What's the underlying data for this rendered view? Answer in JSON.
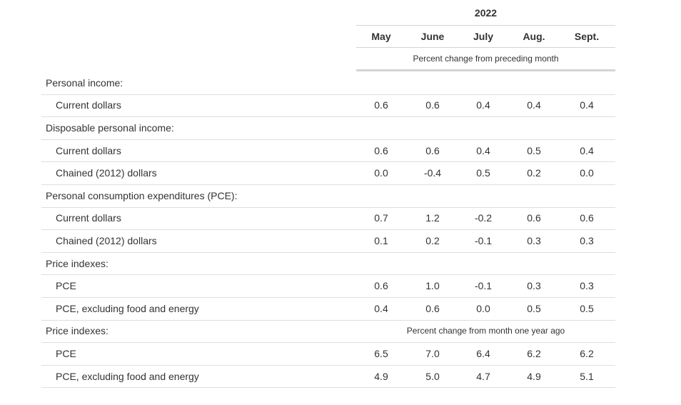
{
  "table": {
    "year": "2022",
    "months": [
      "May",
      "June",
      "July",
      "Aug.",
      "Sept."
    ],
    "subhead_monthly": "Percent change from preceding month",
    "rows": [
      {
        "type": "group",
        "label": "Personal income:"
      },
      {
        "type": "data",
        "label": "Current dollars",
        "values": [
          "0.6",
          "0.6",
          "0.4",
          "0.4",
          "0.4"
        ]
      },
      {
        "type": "group",
        "label": "Disposable personal income:"
      },
      {
        "type": "data",
        "label": "Current dollars",
        "values": [
          "0.6",
          "0.6",
          "0.4",
          "0.5",
          "0.4"
        ]
      },
      {
        "type": "data",
        "label": "Chained (2012) dollars",
        "values": [
          "0.0",
          "-0.4",
          "0.5",
          "0.2",
          "0.0"
        ]
      },
      {
        "type": "group",
        "label": "Personal consumption expenditures (PCE):"
      },
      {
        "type": "data",
        "label": "Current dollars",
        "values": [
          "0.7",
          "1.2",
          "-0.2",
          "0.6",
          "0.6"
        ]
      },
      {
        "type": "data",
        "label": "Chained (2012) dollars",
        "values": [
          "0.1",
          "0.2",
          "-0.1",
          "0.3",
          "0.3"
        ]
      },
      {
        "type": "group",
        "label": "Price indexes:"
      },
      {
        "type": "data",
        "label": "PCE",
        "values": [
          "0.6",
          "1.0",
          "-0.1",
          "0.3",
          "0.3"
        ]
      },
      {
        "type": "data",
        "label": "PCE, excluding food and energy",
        "values": [
          "0.4",
          "0.6",
          "0.0",
          "0.5",
          "0.5"
        ]
      },
      {
        "type": "group",
        "label": "Price indexes:",
        "note": "Percent change from month one year ago"
      },
      {
        "type": "data",
        "label": "PCE",
        "values": [
          "6.5",
          "7.0",
          "6.4",
          "6.2",
          "6.2"
        ]
      },
      {
        "type": "data",
        "label": "PCE, excluding food and energy",
        "values": [
          "4.9",
          "5.0",
          "4.7",
          "4.9",
          "5.1"
        ]
      }
    ]
  }
}
